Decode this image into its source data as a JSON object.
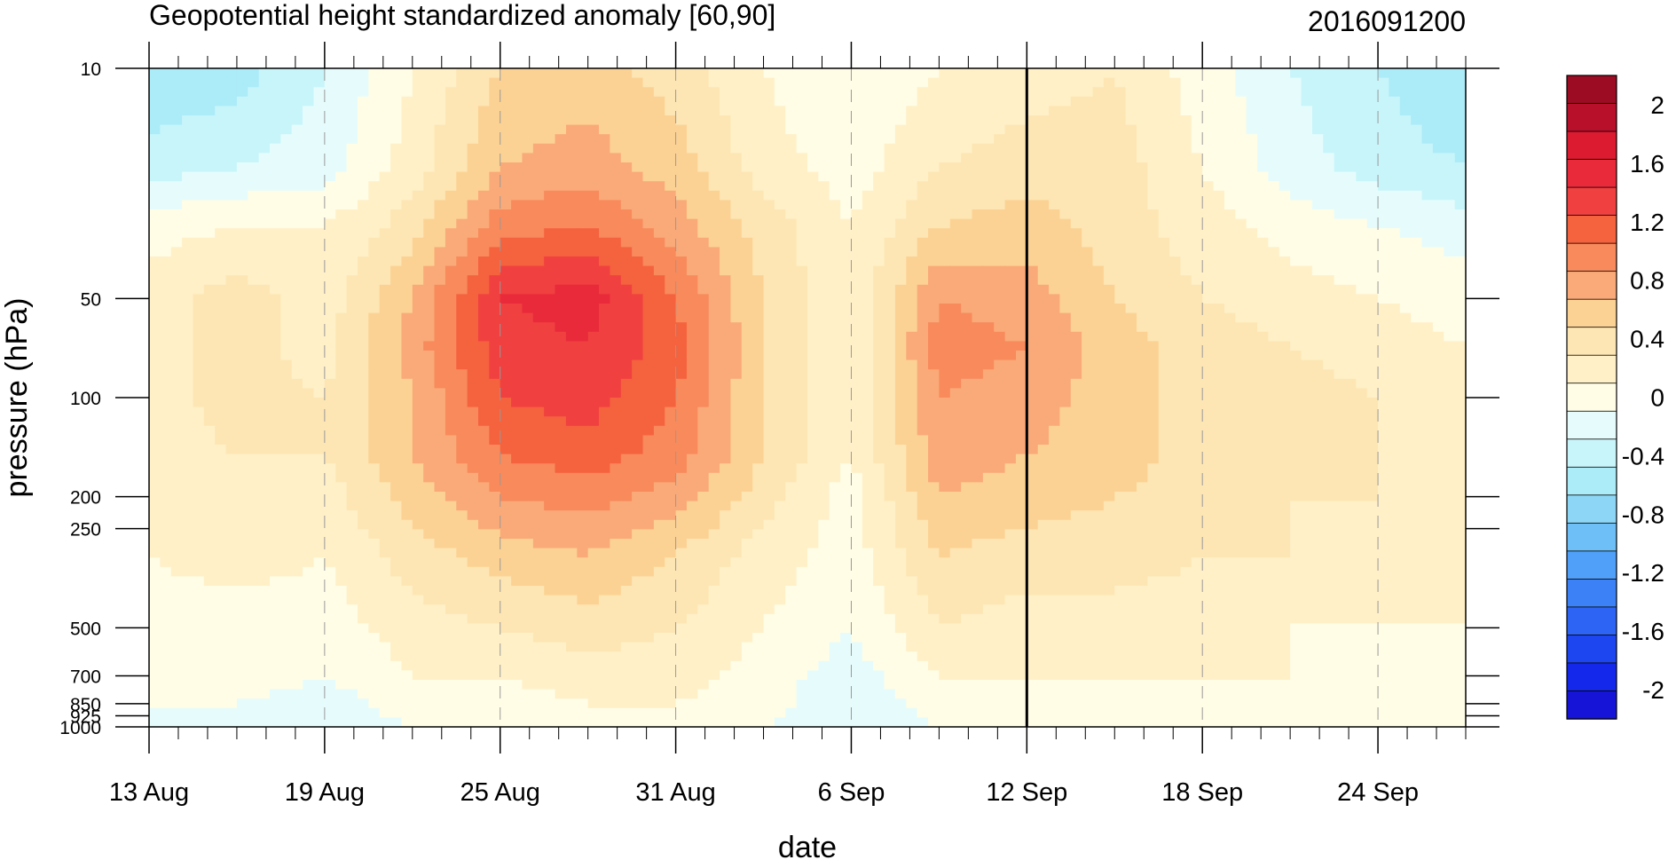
{
  "chart_data": {
    "type": "heatmap",
    "subtype": "filled-contour",
    "title": "Geopotential height standardized anomaly [60,90]",
    "title_right": "2016091200",
    "xlabel": "date",
    "ylabel": "pressure (hPa)",
    "x_ticks": [
      "13 Aug",
      "19 Aug",
      "25 Aug",
      "31 Aug",
      "6 Sep",
      "12 Sep",
      "18 Sep",
      "24 Sep"
    ],
    "x_range_days": [
      0,
      45
    ],
    "y_scale": "log",
    "y_ticks": [
      10,
      50,
      100,
      200,
      250,
      500,
      700,
      850,
      925,
      1000
    ],
    "y_range": [
      10,
      1000
    ],
    "marker_line_date": "12 Sep",
    "colorbar": {
      "levels": [
        -2.2,
        -2.0,
        -1.8,
        -1.6,
        -1.4,
        -1.2,
        -1.0,
        -0.8,
        -0.6,
        -0.4,
        -0.2,
        0.0,
        0.2,
        0.4,
        0.6,
        0.8,
        1.0,
        1.2,
        1.4,
        1.6,
        1.8,
        2.0,
        2.2
      ],
      "labels": [
        "2",
        "1.6",
        "1.2",
        "0.8",
        "0.4",
        "0",
        "-0.4",
        "-0.8",
        "-1.2",
        "-1.6",
        "-2"
      ],
      "label_values": [
        2.0,
        1.6,
        1.2,
        0.8,
        0.4,
        0.0,
        -0.4,
        -0.8,
        -1.2,
        -1.6,
        -2.0
      ],
      "colors": [
        "#1614d6",
        "#1428eb",
        "#1e46f0",
        "#2d64f4",
        "#3c82f6",
        "#50a0fa",
        "#6ebef8",
        "#8ed6f6",
        "#acebf8",
        "#c8f5fa",
        "#e6fcfc",
        "#fffde6",
        "#fff0c8",
        "#fde6b4",
        "#fcd294",
        "#faaa78",
        "#f88a5c",
        "#f5623e",
        "#f04040",
        "#e82a3a",
        "#dc1a30",
        "#b80f2a",
        "#9c0c22"
      ]
    },
    "x_days": [
      0,
      3,
      6,
      9,
      12,
      15,
      18,
      21,
      24,
      27,
      30,
      33,
      36,
      39,
      42,
      45
    ],
    "y_levels": [
      10,
      20,
      30,
      50,
      70,
      100,
      150,
      200,
      300,
      500,
      700,
      850,
      1000
    ],
    "z": [
      [
        -0.6,
        -0.5,
        -0.2,
        0.2,
        0.6,
        0.7,
        0.5,
        0.2,
        0.0,
        0.2,
        0.3,
        0.4,
        0.1,
        -0.2,
        -0.4,
        -0.6
      ],
      [
        -0.3,
        -0.2,
        -0.1,
        0.3,
        0.8,
        0.9,
        0.7,
        0.3,
        0.1,
        0.4,
        0.5,
        0.5,
        0.2,
        -0.1,
        -0.3,
        -0.4
      ],
      [
        0.1,
        0.2,
        0.2,
        0.5,
        1.1,
        1.2,
        0.9,
        0.5,
        0.2,
        0.6,
        0.7,
        0.5,
        0.3,
        0.1,
        0.0,
        -0.1
      ],
      [
        0.3,
        0.5,
        0.3,
        0.8,
        1.6,
        1.7,
        1.2,
        0.6,
        0.2,
        1.0,
        0.9,
        0.6,
        0.4,
        0.3,
        0.2,
        0.1
      ],
      [
        0.3,
        0.5,
        0.3,
        0.9,
        1.5,
        1.6,
        1.3,
        0.6,
        0.2,
        1.1,
        1.0,
        0.7,
        0.5,
        0.4,
        0.3,
        0.2
      ],
      [
        0.3,
        0.5,
        0.4,
        0.8,
        1.4,
        1.5,
        1.2,
        0.6,
        0.2,
        1.0,
        0.9,
        0.7,
        0.5,
        0.5,
        0.4,
        0.3
      ],
      [
        0.3,
        0.4,
        0.4,
        0.8,
        1.2,
        1.3,
        1.1,
        0.6,
        0.2,
        0.9,
        0.8,
        0.7,
        0.5,
        0.5,
        0.4,
        0.4
      ],
      [
        0.3,
        0.3,
        0.3,
        0.7,
        1.0,
        1.1,
        0.9,
        0.5,
        0.1,
        0.8,
        0.7,
        0.6,
        0.5,
        0.4,
        0.4,
        0.3
      ],
      [
        0.2,
        0.3,
        0.2,
        0.5,
        0.7,
        0.8,
        0.6,
        0.3,
        0.1,
        0.6,
        0.5,
        0.5,
        0.4,
        0.4,
        0.3,
        0.3
      ],
      [
        0.1,
        0.1,
        0.1,
        0.3,
        0.4,
        0.5,
        0.4,
        0.2,
        0.0,
        0.4,
        0.3,
        0.3,
        0.3,
        0.2,
        0.2,
        0.2
      ],
      [
        0.1,
        0.1,
        0.0,
        0.2,
        0.2,
        0.3,
        0.3,
        0.1,
        -0.1,
        0.2,
        0.2,
        0.2,
        0.2,
        0.2,
        0.1,
        0.1
      ],
      [
        0.0,
        0.0,
        -0.1,
        0.1,
        0.1,
        0.2,
        0.2,
        0.1,
        -0.2,
        0.1,
        0.1,
        0.1,
        0.1,
        0.1,
        0.1,
        0.1
      ],
      [
        -0.1,
        -0.1,
        -0.1,
        0.0,
        0.0,
        0.1,
        0.1,
        0.0,
        -0.2,
        0.0,
        0.0,
        0.0,
        0.0,
        0.0,
        0.0,
        0.0
      ]
    ]
  }
}
